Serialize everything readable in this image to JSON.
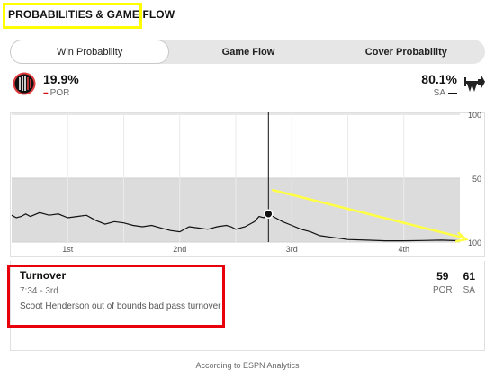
{
  "section": {
    "title": "PROBABILITIES & GAME FLOW"
  },
  "tabs": [
    {
      "label": "Win Probability",
      "active": true
    },
    {
      "label": "Game Flow",
      "active": false
    },
    {
      "label": "Cover Probability",
      "active": false
    }
  ],
  "teams": {
    "away": {
      "pct": "19.9%",
      "abbr": "POR",
      "dash": "--",
      "logo": "trail-blazers-logo",
      "color": "#d50a0a"
    },
    "home": {
      "pct": "80.1%",
      "abbr": "SA",
      "dash": "—",
      "logo": "spurs-logo",
      "color": "#111111"
    }
  },
  "chart_data": {
    "type": "line",
    "title": "",
    "xlabel": "",
    "ylabel": "",
    "ylim": [
      0,
      100
    ],
    "yticks": [
      "100",
      "50",
      "100"
    ],
    "x_ticks": [
      "1st",
      "2nd",
      "3rd",
      "4th"
    ],
    "x_range": [
      0,
      48
    ],
    "series": [
      {
        "color": "#111111",
        "x": [
          0,
          0.5,
          1,
          1.5,
          2,
          3,
          4,
          5,
          6,
          7,
          8,
          9,
          10,
          11,
          12,
          13,
          14,
          15,
          16,
          17,
          18,
          19,
          20,
          21,
          22,
          23,
          23.5,
          24,
          25,
          26,
          26.5,
          27,
          27.5,
          28,
          29,
          30,
          31,
          32,
          33,
          34,
          35,
          36,
          38,
          40,
          42,
          44,
          46,
          48
        ],
        "y": [
          79,
          81,
          80,
          78,
          80,
          77,
          79,
          78,
          81,
          80,
          79,
          83,
          86,
          84,
          85,
          87,
          88,
          87,
          89,
          91,
          92,
          88,
          89,
          90,
          88,
          87,
          88,
          90,
          88,
          84,
          80,
          81,
          78,
          80,
          84,
          87,
          90,
          92,
          95,
          96,
          97,
          98,
          98.5,
          99,
          99,
          98.8,
          98.5,
          99
        ]
      }
    ],
    "marker": {
      "x": 27.5,
      "y": 78
    },
    "shaded_region": [
      0,
      50
    ],
    "grid": true
  },
  "play": {
    "type": "Turnover",
    "time": "7:34 - 3rd",
    "description": "Scoot Henderson out of bounds bad pass turnover",
    "score_away": "59",
    "score_home": "61",
    "away_abbr": "POR",
    "home_abbr": "SA"
  },
  "footer": "According to ESPN Analytics",
  "colors": {
    "highlight_yellow": "#ffff00",
    "highlight_red": "#e8000b",
    "arrow_yellow": "#ffff44"
  }
}
